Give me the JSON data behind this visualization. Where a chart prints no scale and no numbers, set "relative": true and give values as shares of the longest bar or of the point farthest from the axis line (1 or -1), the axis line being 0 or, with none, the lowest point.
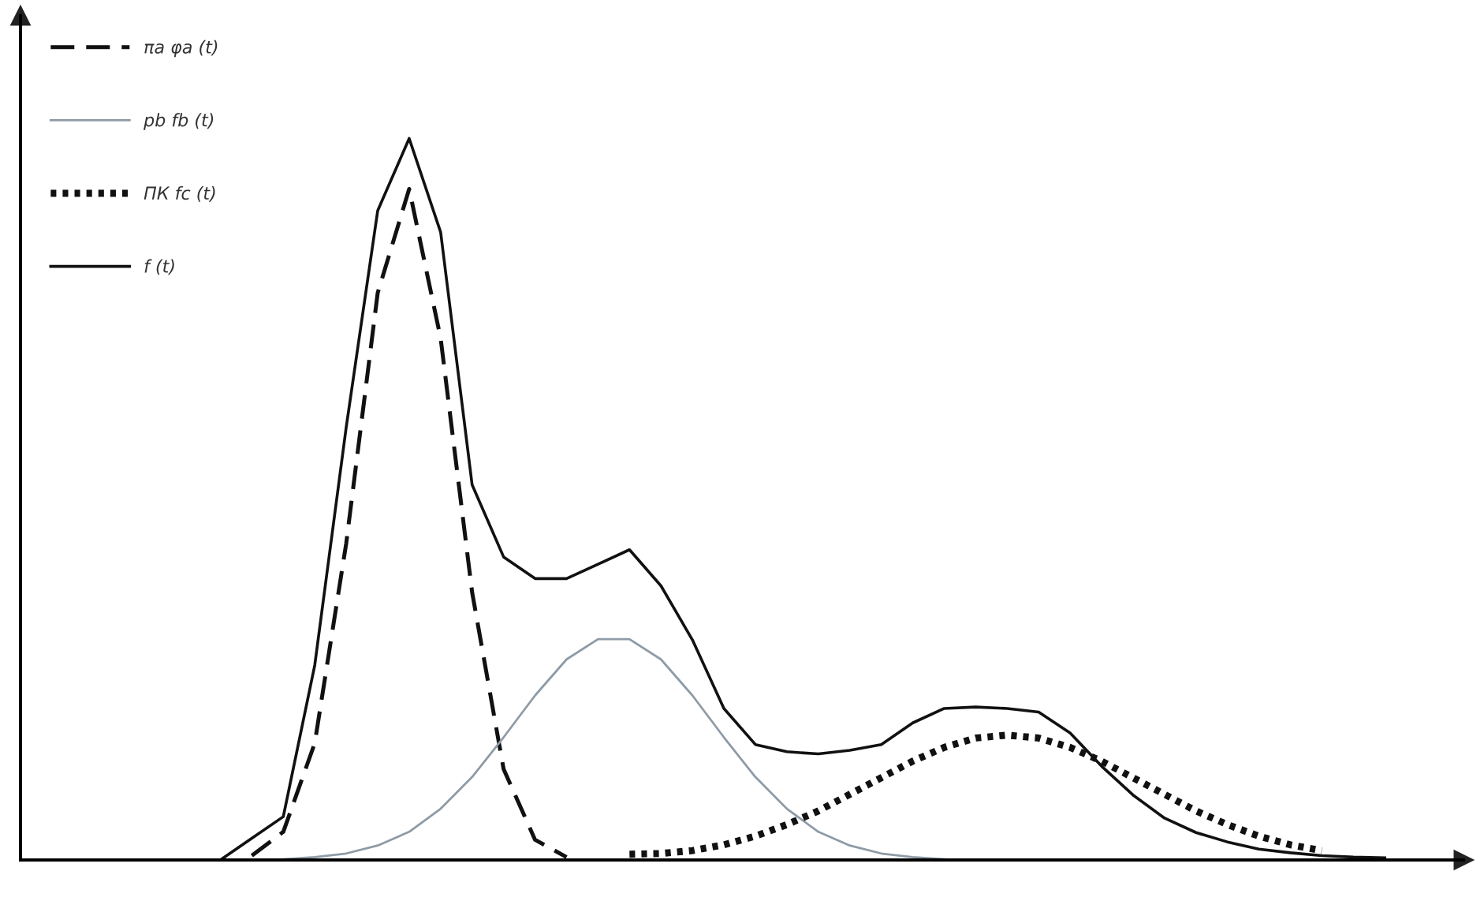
{
  "chart_data": {
    "type": "line",
    "relative": true,
    "legend": "top left",
    "marker": "none",
    "categories": [
      null,
      null,
      null,
      null,
      null,
      null,
      null,
      null,
      null,
      null,
      null,
      null,
      null,
      null,
      null,
      null,
      null,
      null,
      null,
      null,
      null,
      null,
      null,
      null,
      null,
      null,
      null,
      null,
      null,
      null,
      null,
      null,
      null,
      null,
      null,
      null,
      null,
      null
    ],
    "series": [
      {
        "name": "πa φa (t)",
        "color": "#111111",
        "line_style": "dashed",
        "values": [
          null,
          0.006,
          0.039,
          0.162,
          0.439,
          0.786,
          0.93,
          0.723,
          0.371,
          0.126,
          0.028,
          0.004,
          null,
          null,
          null,
          null,
          null,
          null,
          null,
          null,
          null,
          null,
          null,
          null,
          null,
          null,
          null,
          null,
          null,
          null,
          null,
          null,
          null,
          null,
          null,
          null,
          null,
          null
        ]
      },
      {
        "name": "pb fb (t)",
        "color": "#8e9ba6",
        "line_style": "solid",
        "values": [
          null,
          0,
          0.001,
          0.004,
          0.009,
          0.02,
          0.039,
          0.071,
          0.115,
          0.17,
          0.228,
          0.278,
          0.306,
          0.306,
          0.278,
          0.228,
          0.17,
          0.115,
          0.071,
          0.039,
          0.02,
          0.009,
          0.004,
          0.001,
          null,
          null,
          null,
          null,
          null,
          null,
          null,
          null,
          null,
          null,
          null,
          null,
          null,
          null
        ]
      },
      {
        "name": "ПК fc (t)",
        "color": "#111111",
        "line_style": "dotted",
        "values": [
          null,
          null,
          null,
          null,
          null,
          null,
          null,
          null,
          null,
          null,
          null,
          null,
          null,
          0.008,
          0.009,
          0.013,
          0.021,
          0.033,
          0.049,
          0.068,
          0.091,
          0.114,
          0.137,
          0.156,
          0.169,
          0.173,
          0.169,
          0.156,
          0.137,
          0.114,
          0.091,
          0.068,
          0.049,
          0.033,
          0.021,
          0.013,
          null,
          null
        ]
      },
      {
        "name": "f (t)",
        "color": "#111111",
        "line_style": "solid",
        "values": [
          0,
          0.03,
          0.06,
          0.27,
          0.6,
          0.9,
          1.0,
          0.87,
          0.52,
          0.42,
          0.39,
          0.39,
          0.41,
          0.43,
          0.38,
          0.305,
          0.21,
          0.16,
          0.15,
          0.147,
          0.152,
          0.16,
          0.19,
          0.21,
          0.212,
          0.21,
          0.205,
          0.176,
          0.13,
          0.09,
          0.058,
          0.038,
          0.025,
          0.015,
          0.01,
          0.006,
          0.004,
          0.003
        ]
      }
    ]
  }
}
